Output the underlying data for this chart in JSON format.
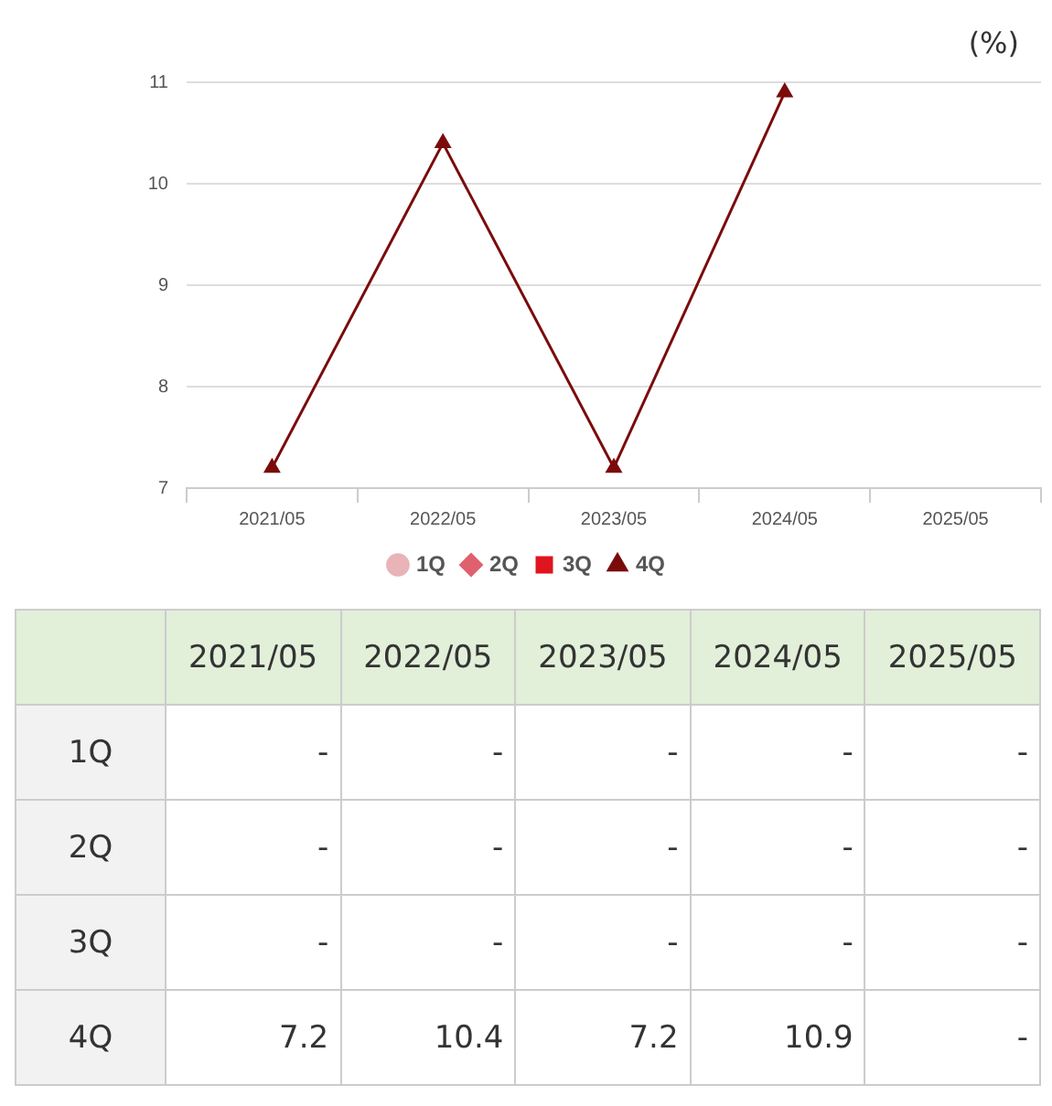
{
  "chart_data": {
    "type": "line",
    "ylabel": "(%)",
    "categories": [
      "2021/05",
      "2022/05",
      "2023/05",
      "2024/05",
      "2025/05"
    ],
    "ylim": [
      7,
      11
    ],
    "yticks": [
      7,
      8,
      9,
      10,
      11
    ],
    "grid": "y",
    "legend": "bottom",
    "series": [
      {
        "name": "1Q",
        "color": "#e8b4b8",
        "marker": "circle",
        "values": [
          null,
          null,
          null,
          null,
          null
        ],
        "value_labels": [
          "-",
          "-",
          "-",
          "-",
          "-"
        ]
      },
      {
        "name": "2Q",
        "color": "#e0606e",
        "marker": "diamond",
        "values": [
          null,
          null,
          null,
          null,
          null
        ],
        "value_labels": [
          "-",
          "-",
          "-",
          "-",
          "-"
        ]
      },
      {
        "name": "3Q",
        "color": "#e0141e",
        "marker": "square",
        "values": [
          null,
          null,
          null,
          null,
          null
        ],
        "value_labels": [
          "-",
          "-",
          "-",
          "-",
          "-"
        ]
      },
      {
        "name": "4Q",
        "color": "#7b0c0c",
        "marker": "triangle",
        "values": [
          7.2,
          10.4,
          7.2,
          10.9,
          null
        ],
        "value_labels": [
          "7.2",
          "10.4",
          "7.2",
          "10.9",
          "-"
        ]
      }
    ]
  }
}
